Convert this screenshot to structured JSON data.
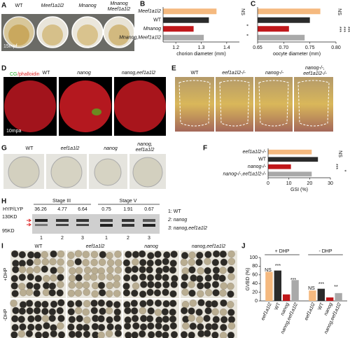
{
  "panels": {
    "A": {
      "label": "A",
      "captions": [
        [
          "WT"
        ],
        [
          "Meef1a1l2"
        ],
        [
          "Mnanog"
        ],
        [
          "Mnanog",
          "Meef1a1l2"
        ]
      ],
      "time": "15mpf"
    },
    "B": {
      "label": "B"
    },
    "C": {
      "label": "C"
    },
    "D": {
      "label": "D",
      "stain": [
        "CG",
        "/phalloidin"
      ],
      "captions": [
        "WT",
        "nanog",
        "nanog,eef1a1l2"
      ],
      "time": "10mpa"
    },
    "E": {
      "label": "E",
      "captions": [
        [
          "WT"
        ],
        [
          "eef1a1l2-/-"
        ],
        [
          "nanog-/-"
        ],
        [
          "nanog-/-,",
          "eef1a1l2-/-"
        ]
      ]
    },
    "F": {
      "label": "F"
    },
    "G": {
      "label": "G",
      "captions": [
        [
          "WT"
        ],
        [
          "eef1a1l2"
        ],
        [
          "nanog"
        ],
        [
          "nanog,",
          "eef1a1l2"
        ]
      ]
    },
    "H": {
      "label": "H",
      "ratio_label": "HYP/LYP",
      "ratios": [
        "36.26",
        "4.77",
        "6.64",
        "0.75",
        "1.91",
        "0.67"
      ],
      "stages": [
        "Stage III",
        "Stage V"
      ],
      "markers": [
        "130KD",
        "95KD"
      ],
      "lanes": [
        "1",
        "2",
        "3",
        "1",
        "2",
        "3"
      ],
      "legend": [
        "1: WT",
        "2: nanog",
        "3: nanog,eef1a1l2"
      ]
    },
    "I": {
      "label": "I",
      "captions": [
        "WT",
        "eef1a1l2",
        "nanog",
        "nanog,eef1a1l2"
      ],
      "rows": [
        "+DHP",
        "-DHP"
      ]
    },
    "J": {
      "label": "J"
    }
  },
  "chart_data": [
    {
      "type": "hbar",
      "categories": [
        "Meef1a1l2",
        "WT",
        "Mnanog",
        "Mnanog,Meef1a1l2"
      ],
      "values": [
        1.36,
        1.33,
        1.27,
        1.31
      ],
      "colors": [
        "#f5b97f",
        "#2b2b2b",
        "#c0171a",
        "#a9a9a9"
      ],
      "xlim": [
        1.15,
        1.45
      ],
      "xticks": [
        1.2,
        1.3,
        1.4
      ],
      "xlabel": "chorion diameter (mm)",
      "annotations": [
        "NS",
        "*",
        "*"
      ]
    },
    {
      "type": "hbar",
      "values": [
        0.77,
        0.75,
        0.71,
        0.74
      ],
      "colors": [
        "#f5b97f",
        "#2b2b2b",
        "#c0171a",
        "#a9a9a9"
      ],
      "xlim": [
        0.65,
        0.8
      ],
      "xticks": [
        0.65,
        {
          "value": 0.7,
          "label": "0.70"
        },
        0.75,
        {
          "value": 0.8,
          "label": "0.80"
        }
      ],
      "xlabel": "oocyte diameter (mm)",
      "annotations": [
        "NS",
        "***",
        "***",
        "***"
      ]
    },
    {
      "type": "hbar",
      "categories": [
        "eef1a1l2-/-",
        "WT",
        "nanog-/-",
        "nanog-/-,eef1a1l2-/-"
      ],
      "values": [
        21,
        24,
        11,
        21
      ],
      "colors": [
        "#f5b97f",
        "#2b2b2b",
        "#c0171a",
        "#a9a9a9"
      ],
      "xlim": [
        0,
        30
      ],
      "xticks": [
        0,
        10,
        20,
        30
      ],
      "xlabel": "GSI (%)",
      "annotations": [
        "NS",
        "***",
        "*"
      ]
    },
    {
      "type": "bar",
      "categories": [
        "+ DHP",
        "- DHP"
      ],
      "series": [
        {
          "name": "eef1a1l2",
          "color": "#f5b97f",
          "values": [
            67,
            24
          ]
        },
        {
          "name": "WT",
          "color": "#2b2b2b",
          "values": [
            70,
            28
          ]
        },
        {
          "name": "nanog",
          "color": "#c0171a",
          "values": [
            15,
            8
          ]
        },
        {
          "name": "nanog,eef1a1l2",
          "color": "#a9a9a9",
          "values": [
            48,
            18
          ]
        }
      ],
      "ylim": [
        0,
        100
      ],
      "yticks": [
        0,
        20,
        40,
        60,
        80,
        100
      ],
      "ylabel": "GVBD (%)",
      "annotations": [
        "NS",
        "***",
        "***",
        "NS",
        "***",
        "**"
      ]
    }
  ]
}
